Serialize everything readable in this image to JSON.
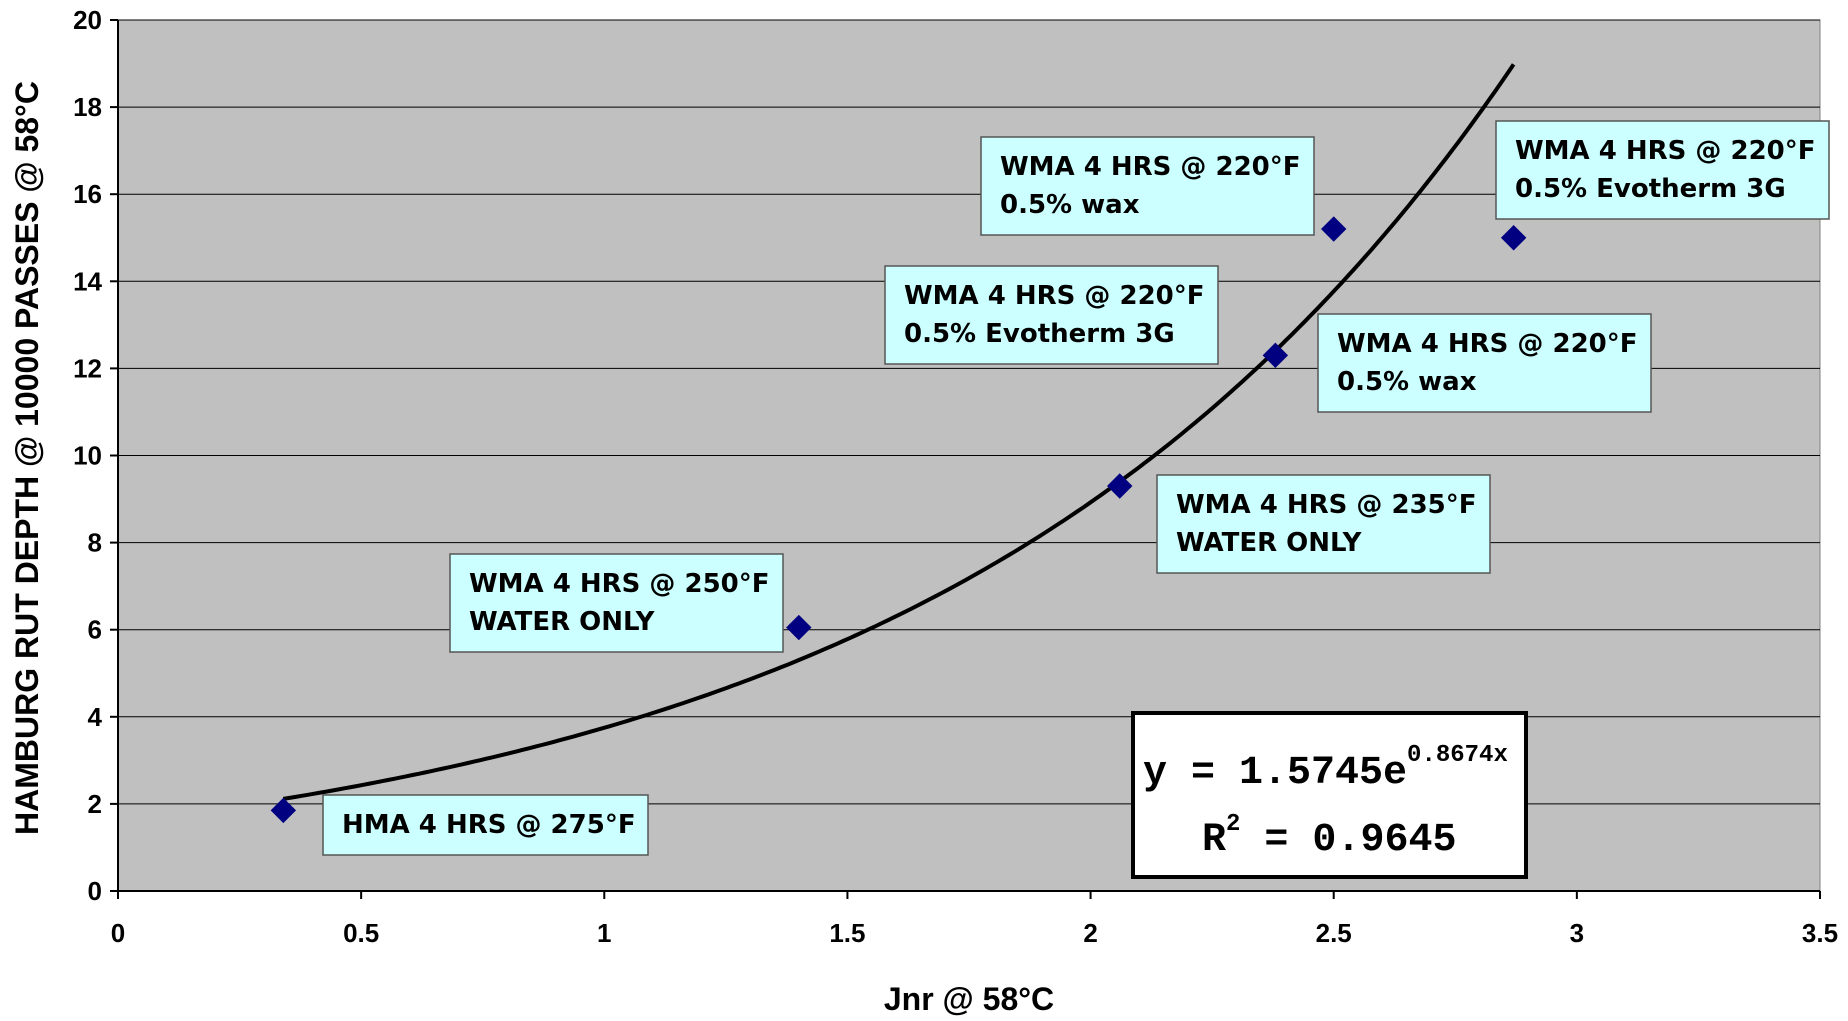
{
  "chart_data": {
    "type": "scatter",
    "title": "",
    "xlabel": "Jnr @ 58°C",
    "ylabel": "HAMBURG RUT DEPTH @ 10000 PASSES @ 58°C",
    "xlim": [
      0,
      3.5
    ],
    "ylim": [
      0,
      20
    ],
    "x_ticks": [
      "0",
      "0.5",
      "1",
      "1.5",
      "2",
      "2.5",
      "3",
      "3.5"
    ],
    "y_ticks": [
      "0",
      "2",
      "4",
      "6",
      "8",
      "10",
      "12",
      "14",
      "16",
      "18",
      "20"
    ],
    "grid": true,
    "background": "#c0c0c0",
    "marker_color": "#000080",
    "annotation_color": "#ccffff",
    "points": [
      {
        "x": 0.34,
        "y": 1.85
      },
      {
        "x": 1.4,
        "y": 6.05
      },
      {
        "x": 2.06,
        "y": 9.3
      },
      {
        "x": 2.38,
        "y": 12.3
      },
      {
        "x": 2.5,
        "y": 15.2
      },
      {
        "x": 2.87,
        "y": 15.0
      }
    ],
    "trendline": {
      "type": "exponential",
      "a": 1.5745,
      "b": 0.8674,
      "x_range": [
        0.34,
        2.87
      ],
      "color": "#000000"
    },
    "equation_box": {
      "line1": "y = 1.5745e",
      "exponent": "0.8674x",
      "line2_prefix": "R",
      "line2_sup": "2",
      "line2_suffix": " = 0.9645"
    },
    "annotations": [
      {
        "lines": [
          "HMA 4 HRS @ 275°F"
        ]
      },
      {
        "lines": [
          "WMA 4 HRS @ 250°F",
          "WATER ONLY"
        ]
      },
      {
        "lines": [
          "WMA 4 HRS @ 235°F",
          "WATER ONLY"
        ]
      },
      {
        "lines": [
          "WMA 4 HRS @ 220°F",
          "0.5% Evotherm 3G"
        ]
      },
      {
        "lines": [
          "WMA 4 HRS @ 220°F",
          "0.5% wax"
        ]
      },
      {
        "lines": [
          "WMA 4 HRS @ 220°F",
          "0.5% wax"
        ]
      },
      {
        "lines": [
          "WMA 4 HRS @ 220°F",
          "0.5% Evotherm 3G"
        ]
      }
    ]
  }
}
